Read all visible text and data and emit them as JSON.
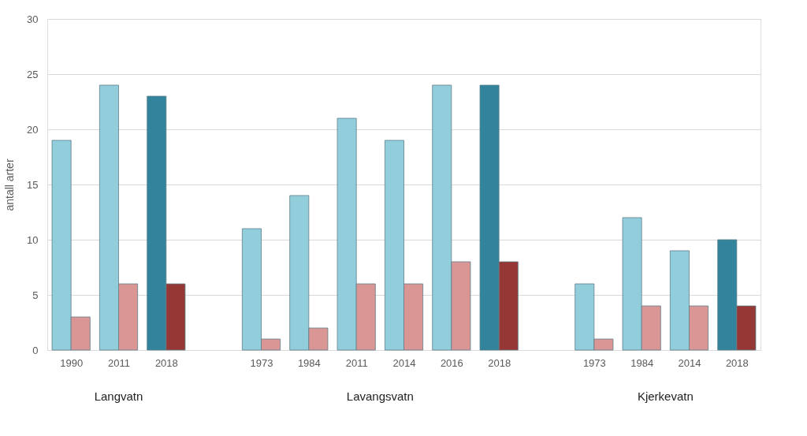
{
  "chart_data": {
    "type": "bar",
    "ylabel": "antall arter",
    "categories": [
      "1990",
      "2011",
      "2018",
      null,
      "1973",
      "1984",
      "2011",
      "2014",
      "2016",
      "2018",
      null,
      "1973",
      "1984",
      "2014",
      "2018"
    ],
    "series": [
      {
        "colors": [
          "#92cddc",
          "#92cddc",
          "#31849b",
          null,
          "#92cddc",
          "#92cddc",
          "#92cddc",
          "#92cddc",
          "#92cddc",
          "#31849b",
          null,
          "#92cddc",
          "#92cddc",
          "#92cddc",
          "#31849b"
        ],
        "values": [
          19,
          24,
          23,
          null,
          11,
          14,
          21,
          19,
          24,
          24,
          null,
          6,
          12,
          9,
          10
        ]
      },
      {
        "colors": [
          "#d99694",
          "#d99694",
          "#953735",
          null,
          "#d99694",
          "#d99694",
          "#d99694",
          "#d99694",
          "#d99694",
          "#953735",
          null,
          "#d99694",
          "#d99694",
          "#d99694",
          "#953735"
        ],
        "values": [
          3,
          6,
          6,
          null,
          1,
          2,
          6,
          6,
          8,
          8,
          null,
          1,
          4,
          4,
          4
        ]
      }
    ],
    "annotations": [
      "Langvatn",
      "Lavangsvatn",
      "Kjerkevatn"
    ],
    "ylim": [
      0,
      30
    ],
    "yticks": [
      0,
      5,
      10,
      15,
      20,
      25,
      30
    ],
    "grid": "y"
  }
}
